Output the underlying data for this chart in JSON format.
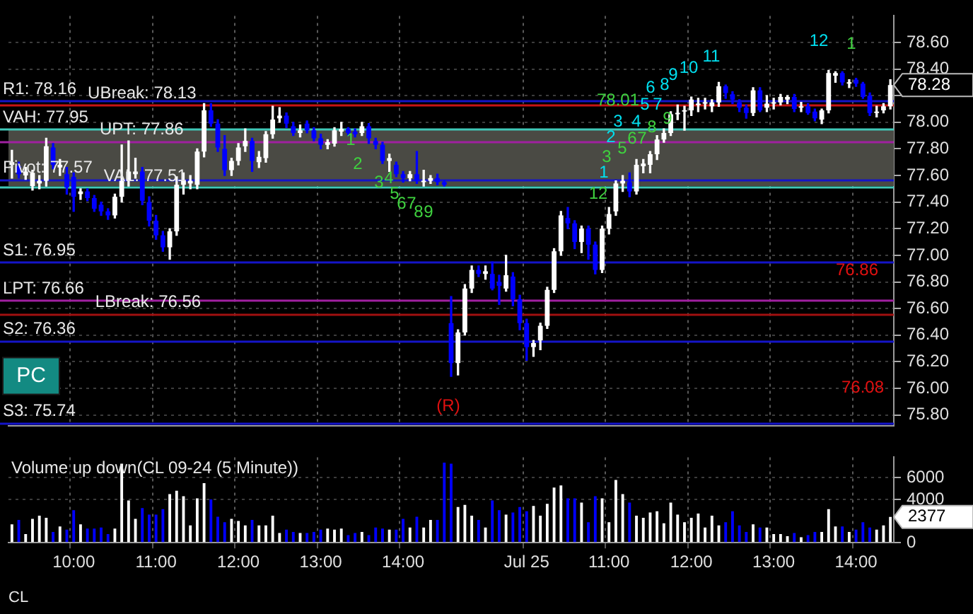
{
  "chart_data": [
    {
      "type": "candlestick",
      "categories": [
        null,
        null,
        null,
        null,
        null,
        null,
        null,
        null,
        null,
        null,
        null,
        null,
        null,
        null,
        null,
        null,
        null,
        null,
        null,
        null,
        null,
        null,
        null,
        null,
        null,
        null,
        null,
        null,
        null,
        null,
        null,
        null,
        null,
        null,
        null,
        null,
        null,
        null,
        null,
        null,
        null,
        null,
        null,
        null,
        null,
        null,
        null,
        null,
        null,
        null,
        null,
        null,
        null,
        null,
        null,
        null,
        null,
        null,
        null,
        null,
        null,
        null,
        null,
        null,
        null,
        null,
        null,
        null,
        null,
        null,
        null,
        null,
        null,
        null,
        null,
        null,
        null,
        null,
        null,
        null,
        null,
        null,
        null,
        null,
        null,
        null,
        null,
        null,
        null,
        null,
        null,
        null,
        null,
        null,
        null,
        null,
        null,
        null,
        null,
        null,
        null,
        null,
        null,
        null,
        null,
        null,
        null,
        null,
        null,
        null,
        null,
        null,
        null,
        null,
        null,
        null,
        null,
        null,
        null,
        null,
        null,
        null,
        null,
        null,
        null,
        null,
        null,
        null,
        null
      ],
      "ohlc": [
        [
          77.68,
          77.79,
          77.58,
          77.7
        ],
        [
          77.67,
          77.7,
          77.58,
          77.61
        ],
        [
          77.6,
          77.66,
          77.57,
          77.63
        ],
        [
          77.52,
          77.64,
          77.49,
          77.62
        ],
        [
          77.54,
          77.6,
          77.5,
          77.56
        ],
        [
          77.56,
          77.88,
          77.52,
          77.82
        ],
        [
          77.81,
          77.84,
          77.65,
          77.68
        ],
        [
          77.66,
          77.72,
          77.6,
          77.68
        ],
        [
          77.61,
          77.66,
          77.46,
          77.51
        ],
        [
          77.59,
          77.62,
          77.33,
          77.44
        ],
        [
          77.46,
          77.5,
          77.42,
          77.48
        ],
        [
          77.48,
          77.5,
          77.41,
          77.43
        ],
        [
          77.43,
          77.45,
          77.33,
          77.35
        ],
        [
          77.38,
          77.4,
          77.3,
          77.33
        ],
        [
          77.33,
          77.35,
          77.27,
          77.3
        ],
        [
          77.3,
          77.46,
          77.28,
          77.44
        ],
        [
          77.44,
          77.83,
          77.4,
          77.56
        ],
        [
          77.56,
          77.86,
          77.52,
          77.63
        ],
        [
          77.61,
          77.73,
          77.58,
          77.63
        ],
        [
          77.63,
          77.66,
          77.38,
          77.41
        ],
        [
          77.4,
          77.44,
          77.22,
          77.26
        ],
        [
          77.26,
          77.3,
          77.12,
          77.15
        ],
        [
          77.15,
          77.18,
          77.03,
          77.06
        ],
        [
          77.06,
          77.2,
          76.97,
          77.18
        ],
        [
          77.18,
          77.59,
          77.15,
          77.53
        ],
        [
          77.53,
          77.62,
          77.46,
          77.56
        ],
        [
          77.54,
          77.6,
          77.5,
          77.56
        ],
        [
          77.53,
          77.8,
          77.5,
          77.78
        ],
        [
          77.78,
          78.14,
          77.74,
          78.09
        ],
        [
          78.09,
          78.14,
          77.97,
          77.99
        ],
        [
          77.99,
          78.02,
          77.78,
          77.81
        ],
        [
          77.8,
          77.9,
          77.6,
          77.64
        ],
        [
          77.64,
          77.73,
          77.6,
          77.71
        ],
        [
          77.71,
          77.84,
          77.68,
          77.81
        ],
        [
          77.82,
          77.95,
          77.78,
          77.86
        ],
        [
          77.86,
          77.88,
          77.63,
          77.71
        ],
        [
          77.7,
          77.78,
          77.66,
          77.74
        ],
        [
          77.73,
          77.93,
          77.7,
          77.91
        ],
        [
          77.91,
          78.12,
          77.88,
          78.02
        ],
        [
          78.03,
          78.11,
          78.0,
          78.05
        ],
        [
          78.05,
          78.07,
          77.96,
          77.99
        ],
        [
          77.97,
          78.0,
          77.9,
          77.92
        ],
        [
          77.92,
          77.98,
          77.89,
          77.94
        ],
        [
          77.99,
          78.01,
          77.92,
          77.94
        ],
        [
          77.94,
          77.96,
          77.86,
          77.88
        ],
        [
          77.88,
          77.91,
          77.8,
          77.83
        ],
        [
          77.83,
          77.87,
          77.8,
          77.85
        ],
        [
          77.84,
          77.96,
          77.82,
          77.94
        ],
        [
          77.93,
          78.0,
          77.9,
          77.95
        ],
        [
          77.95,
          77.96,
          77.9,
          77.92
        ],
        [
          77.93,
          77.95,
          77.89,
          77.91
        ],
        [
          77.92,
          78.0,
          77.9,
          77.97
        ],
        [
          77.97,
          77.99,
          77.84,
          77.88
        ],
        [
          77.86,
          77.88,
          77.8,
          77.83
        ],
        [
          77.83,
          77.85,
          77.69,
          77.71
        ],
        [
          77.71,
          77.76,
          77.63,
          77.73
        ],
        [
          77.68,
          77.7,
          77.59,
          77.61
        ],
        [
          77.61,
          77.63,
          77.55,
          77.58
        ],
        [
          77.58,
          77.63,
          77.56,
          77.61
        ],
        [
          77.61,
          77.78,
          77.54,
          77.56
        ],
        [
          77.55,
          77.64,
          77.52,
          77.56
        ],
        [
          77.56,
          77.6,
          77.54,
          77.58
        ],
        [
          77.58,
          77.61,
          77.53,
          77.55
        ],
        [
          77.55,
          77.56,
          77.52,
          77.53
        ],
        [
          76.49,
          76.69,
          76.09,
          76.19
        ],
        [
          76.19,
          76.44,
          76.1,
          76.42
        ],
        [
          76.42,
          76.78,
          76.4,
          76.75
        ],
        [
          76.75,
          76.92,
          76.72,
          76.89
        ],
        [
          76.89,
          76.92,
          76.84,
          76.86
        ],
        [
          76.86,
          76.92,
          76.82,
          76.88
        ],
        [
          76.86,
          76.95,
          76.74,
          76.75
        ],
        [
          76.8,
          76.85,
          76.63,
          76.77
        ],
        [
          76.75,
          77.0,
          76.73,
          76.85
        ],
        [
          76.84,
          76.87,
          76.62,
          76.67
        ],
        [
          76.67,
          76.7,
          76.44,
          76.49
        ],
        [
          76.49,
          76.52,
          76.21,
          76.31
        ],
        [
          76.31,
          76.36,
          76.24,
          76.34
        ],
        [
          76.36,
          76.49,
          76.29,
          76.47
        ],
        [
          76.47,
          76.76,
          76.45,
          76.74
        ],
        [
          76.74,
          77.05,
          76.72,
          77.03
        ],
        [
          77.03,
          77.33,
          77.0,
          77.3
        ],
        [
          77.28,
          77.36,
          77.2,
          77.24
        ],
        [
          77.24,
          77.26,
          77.05,
          77.1
        ],
        [
          77.1,
          77.22,
          77.02,
          77.2
        ],
        [
          77.2,
          77.22,
          76.97,
          77.08
        ],
        [
          77.08,
          77.1,
          76.86,
          76.89
        ],
        [
          76.89,
          77.22,
          76.87,
          77.2
        ],
        [
          77.2,
          77.36,
          77.16,
          77.31
        ],
        [
          77.33,
          77.56,
          77.3,
          77.54
        ],
        [
          77.54,
          77.6,
          77.48,
          77.56
        ],
        [
          77.55,
          77.62,
          77.44,
          77.48
        ],
        [
          77.48,
          77.72,
          77.46,
          77.68
        ],
        [
          77.67,
          77.72,
          77.62,
          77.69
        ],
        [
          77.68,
          77.78,
          77.62,
          77.76
        ],
        [
          77.76,
          77.9,
          77.72,
          77.87
        ],
        [
          77.87,
          77.95,
          77.85,
          77.92
        ],
        [
          77.92,
          78.08,
          77.9,
          78.06
        ],
        [
          78.06,
          78.13,
          78.02,
          78.07
        ],
        [
          78.08,
          78.12,
          77.94,
          78.09
        ],
        [
          78.09,
          78.19,
          78.05,
          78.17
        ],
        [
          78.13,
          78.18,
          78.08,
          78.14
        ],
        [
          78.14,
          78.18,
          78.1,
          78.15
        ],
        [
          78.12,
          78.17,
          78.08,
          78.15
        ],
        [
          78.15,
          78.3,
          78.12,
          78.27
        ],
        [
          78.27,
          78.28,
          78.18,
          78.22
        ],
        [
          78.21,
          78.23,
          78.14,
          78.17
        ],
        [
          78.15,
          78.17,
          78.08,
          78.11
        ],
        [
          78.11,
          78.13,
          78.03,
          78.07
        ],
        [
          78.07,
          78.26,
          78.05,
          78.24
        ],
        [
          78.24,
          78.26,
          78.08,
          78.09
        ],
        [
          78.11,
          78.2,
          78.08,
          78.14
        ],
        [
          78.14,
          78.18,
          78.1,
          78.15
        ],
        [
          78.15,
          78.21,
          78.13,
          78.19
        ],
        [
          78.17,
          78.2,
          78.14,
          78.19
        ],
        [
          78.19,
          78.21,
          78.08,
          78.1
        ],
        [
          78.11,
          78.15,
          78.08,
          78.12
        ],
        [
          78.12,
          78.14,
          78.06,
          78.07
        ],
        [
          78.08,
          78.1,
          78.01,
          78.03
        ],
        [
          78.02,
          78.1,
          77.99,
          78.09
        ],
        [
          78.09,
          78.39,
          78.07,
          78.37
        ],
        [
          78.35,
          78.38,
          78.3,
          78.37
        ],
        [
          78.37,
          78.38,
          78.28,
          78.3
        ],
        [
          78.29,
          78.32,
          78.26,
          78.3
        ],
        [
          78.32,
          78.33,
          78.27,
          78.29
        ],
        [
          78.29,
          78.3,
          78.18,
          78.19
        ],
        [
          78.2,
          78.22,
          78.05,
          78.07
        ],
        [
          78.07,
          78.12,
          78.04,
          78.08
        ],
        [
          78.09,
          78.14,
          78.07,
          78.12
        ],
        [
          78.12,
          78.32,
          78.1,
          78.28
        ]
      ],
      "colors": [
        "#ffffff",
        "#0000ff",
        "#ffffff",
        "#ffffff",
        "#ffffff",
        "#ffffff",
        "#0000ff",
        "#ffffff",
        "#0000ff",
        "#0000ff",
        "#ffffff",
        "#0000ff",
        "#0000ff",
        "#0000ff",
        "#0000ff",
        "#ffffff",
        "#ffffff",
        "#ffffff",
        "#ffffff",
        "#0000ff",
        "#0000ff",
        "#0000ff",
        "#0000ff",
        "#ffffff",
        "#ffffff",
        "#ffffff",
        "#ffffff",
        "#ffffff",
        "#ffffff",
        "#0000ff",
        "#0000ff",
        "#0000ff",
        "#ffffff",
        "#ffffff",
        "#ffffff",
        "#0000ff",
        "#ffffff",
        "#ffffff",
        "#ffffff",
        "#ffffff",
        "#0000ff",
        "#0000ff",
        "#ffffff",
        "#0000ff",
        "#0000ff",
        "#0000ff",
        "#ffffff",
        "#ffffff",
        "#ffffff",
        "#0000ff",
        "#0000ff",
        "#ffffff",
        "#0000ff",
        "#0000ff",
        "#0000ff",
        "#ffffff",
        "#0000ff",
        "#0000ff",
        "#ffffff",
        "#0000ff",
        "#ffffff",
        "#ffffff",
        "#0000ff",
        "#0000ff",
        "#0000ff",
        "#ffffff",
        "#ffffff",
        "#ffffff",
        "#0000ff",
        "#ffffff",
        "#0000ff",
        "#0000ff",
        "#ffffff",
        "#0000ff",
        "#0000ff",
        "#0000ff",
        "#ffffff",
        "#ffffff",
        "#ffffff",
        "#ffffff",
        "#ffffff",
        "#0000ff",
        "#0000ff",
        "#ffffff",
        "#0000ff",
        "#0000ff",
        "#ffffff",
        "#ffffff",
        "#ffffff",
        "#ffffff",
        "#0000ff",
        "#ffffff",
        "#ffffff",
        "#ffffff",
        "#ffffff",
        "#ffffff",
        "#ffffff",
        "#ffffff",
        "#ffffff",
        "#ffffff",
        "#ffffff",
        "#ffffff",
        "#ffffff",
        "#ffffff",
        "#0000ff",
        "#0000ff",
        "#0000ff",
        "#0000ff",
        "#ffffff",
        "#0000ff",
        "#ffffff",
        "#ffffff",
        "#ffffff",
        "#ffffff",
        "#0000ff",
        "#ffffff",
        "#0000ff",
        "#0000ff",
        "#ffffff",
        "#ffffff",
        "#ffffff",
        "#0000ff",
        "#ffffff",
        "#0000ff",
        "#0000ff",
        "#0000ff",
        "#ffffff",
        "#ffffff",
        "#ffffff"
      ],
      "ylim": [
        75.72,
        78.8
      ],
      "yticks": [
        {
          "value": 75.8,
          "label": "75.80"
        },
        {
          "value": 76,
          "label": "76.00"
        },
        {
          "value": 76.2,
          "label": "76.20"
        },
        {
          "value": 76.4,
          "label": "76.40"
        },
        {
          "value": 76.6,
          "label": "76.60"
        },
        {
          "value": 76.8,
          "label": "76.80"
        },
        {
          "value": 77,
          "label": "77.00"
        },
        {
          "value": 77.2,
          "label": "77.20"
        },
        {
          "value": 77.4,
          "label": "77.40"
        },
        {
          "value": 77.6,
          "label": "77.60"
        },
        {
          "value": 77.8,
          "label": "77.80"
        },
        {
          "value": 78,
          "label": "78.00"
        },
        {
          "value": 78.2,
          "label": null
        },
        {
          "value": 78.4,
          "label": "78.40"
        },
        {
          "value": 78.6,
          "label": "78.60"
        }
      ],
      "grid": true,
      "tick_labels": "y",
      "bands": [
        {
          "axis": "y",
          "from": 77.52,
          "to": 77.95,
          "color": "#4a4a44"
        }
      ],
      "ref_lines": [
        {
          "axis": "y",
          "value": 78.16,
          "label": "R1: 78.16",
          "color": "#1414c8"
        },
        {
          "axis": "y",
          "value": 78.13,
          "label": "UBreak: 78.13",
          "color": "#c81414"
        },
        {
          "axis": "y",
          "value": 77.95,
          "label": "VAH: 77.95",
          "color": "#40c8b8"
        },
        {
          "axis": "y",
          "value": 77.86,
          "label": "UPT: 77.86",
          "color": "#a020a0"
        },
        {
          "axis": "y",
          "value": 77.57,
          "label": "Pivot: 77.57",
          "color": "#1414c8"
        },
        {
          "axis": "y",
          "value": 77.51,
          "label": "VAL: 77.51",
          "color": "#40c8b8"
        },
        {
          "axis": "y",
          "value": 76.95,
          "label": "S1: 76.95",
          "color": "#1414c8"
        },
        {
          "axis": "y",
          "value": 76.66,
          "label": "LPT: 76.66",
          "color": "#a020a0"
        },
        {
          "axis": "y",
          "value": 76.56,
          "label": "LBreak: 76.56",
          "color": "#a01010"
        },
        {
          "axis": "y",
          "value": 76.36,
          "label": "S2: 76.36",
          "color": "#1414c8"
        },
        {
          "axis": "y",
          "value": 75.74,
          "label": "S3: 75.74",
          "color": "#1414c8"
        }
      ],
      "annotations": [
        "12",
        "1",
        "11",
        "10",
        "9",
        "78.28",
        "8",
        "6",
        "78.01",
        "5",
        "7",
        "9",
        "3",
        "4",
        "8",
        "2",
        "6",
        "7",
        "1",
        "5",
        "3",
        "2",
        "1",
        "4",
        "3",
        "5",
        "12",
        "6",
        "7",
        "8",
        "9",
        "76.86",
        "76.08",
        "PC",
        "(R)"
      ]
    },
    {
      "type": "bar",
      "title": "Volume up down(CL 09-24 (5 Minute))",
      "categories": [
        null,
        null,
        null,
        null,
        null,
        null,
        null,
        null,
        null,
        "10:00",
        null,
        null,
        null,
        null,
        null,
        null,
        null,
        null,
        null,
        null,
        null,
        "11:00",
        null,
        null,
        null,
        null,
        null,
        null,
        null,
        null,
        null,
        null,
        null,
        "12:00",
        null,
        null,
        null,
        null,
        null,
        null,
        null,
        null,
        null,
        null,
        null,
        "13:00",
        null,
        null,
        null,
        null,
        null,
        null,
        null,
        null,
        null,
        null,
        null,
        "14:00",
        null,
        null,
        null,
        null,
        null,
        null,
        null,
        null,
        null,
        null,
        null,
        null,
        null,
        null,
        null,
        null,
        null,
        "Jul 25",
        null,
        null,
        null,
        null,
        null,
        null,
        null,
        null,
        null,
        null,
        null,
        "11:00",
        null,
        null,
        null,
        null,
        null,
        null,
        null,
        null,
        null,
        null,
        null,
        "12:00",
        null,
        null,
        null,
        null,
        null,
        null,
        null,
        null,
        null,
        null,
        null,
        "13:00",
        null,
        null,
        null,
        null,
        null,
        null,
        null,
        null,
        null,
        null,
        null,
        "14:00",
        null,
        null,
        null,
        null,
        null
      ],
      "values": [
        1700,
        2100,
        800,
        2200,
        2500,
        2300,
        1000,
        1500,
        1200,
        3000,
        1700,
        1300,
        1300,
        1400,
        800,
        1300,
        7300,
        3900,
        2200,
        3200,
        2600,
        2600,
        3100,
        4500,
        4800,
        4300,
        1600,
        4100,
        5500,
        4000,
        2400,
        1900,
        2200,
        2000,
        1600,
        2100,
        1600,
        1600,
        2500,
        900,
        1200,
        1000,
        900,
        900,
        1000,
        1200,
        1300,
        1200,
        1300,
        700,
        900,
        1000,
        700,
        1400,
        1300,
        1200,
        1200,
        2200,
        1400,
        2400,
        1400,
        2100,
        2100,
        7400,
        7300,
        3300,
        3500,
        2500,
        2100,
        1400,
        3900,
        3000,
        2600,
        2800,
        3300,
        2900,
        3400,
        2500,
        3600,
        5100,
        5300,
        4100,
        4100,
        3700,
        1900,
        4300,
        4100,
        1900,
        5800,
        4500,
        3700,
        2500,
        2300,
        2800,
        2900,
        1800,
        3700,
        2600,
        1900,
        2300,
        2700,
        1400,
        2500,
        1600,
        1900,
        2900,
        1600,
        1000,
        1700,
        1400,
        1400,
        800,
        800,
        600,
        900,
        500,
        700,
        1000,
        1000,
        3100,
        1500,
        1500,
        1000,
        1200,
        1900,
        1400,
        1200,
        1600,
        2377
      ],
      "colors": [
        "#ffffff",
        "#0000ff",
        "#ffffff",
        "#ffffff",
        "#ffffff",
        "#ffffff",
        "#0000ff",
        "#ffffff",
        "#0000ff",
        "#0000ff",
        "#ffffff",
        "#0000ff",
        "#0000ff",
        "#0000ff",
        "#0000ff",
        "#ffffff",
        "#ffffff",
        "#ffffff",
        "#ffffff",
        "#0000ff",
        "#0000ff",
        "#0000ff",
        "#0000ff",
        "#ffffff",
        "#ffffff",
        "#ffffff",
        "#ffffff",
        "#ffffff",
        "#ffffff",
        "#0000ff",
        "#0000ff",
        "#0000ff",
        "#ffffff",
        "#ffffff",
        "#ffffff",
        "#0000ff",
        "#ffffff",
        "#ffffff",
        "#ffffff",
        "#ffffff",
        "#0000ff",
        "#0000ff",
        "#ffffff",
        "#0000ff",
        "#0000ff",
        "#0000ff",
        "#ffffff",
        "#ffffff",
        "#ffffff",
        "#0000ff",
        "#0000ff",
        "#ffffff",
        "#0000ff",
        "#0000ff",
        "#0000ff",
        "#ffffff",
        "#0000ff",
        "#0000ff",
        "#ffffff",
        "#0000ff",
        "#ffffff",
        "#ffffff",
        "#0000ff",
        "#0000ff",
        "#0000ff",
        "#ffffff",
        "#ffffff",
        "#ffffff",
        "#0000ff",
        "#ffffff",
        "#0000ff",
        "#0000ff",
        "#ffffff",
        "#0000ff",
        "#0000ff",
        "#0000ff",
        "#ffffff",
        "#ffffff",
        "#ffffff",
        "#ffffff",
        "#ffffff",
        "#0000ff",
        "#0000ff",
        "#ffffff",
        "#0000ff",
        "#0000ff",
        "#ffffff",
        "#ffffff",
        "#ffffff",
        "#ffffff",
        "#0000ff",
        "#ffffff",
        "#ffffff",
        "#ffffff",
        "#ffffff",
        "#ffffff",
        "#ffffff",
        "#ffffff",
        "#ffffff",
        "#ffffff",
        "#ffffff",
        "#ffffff",
        "#ffffff",
        "#ffffff",
        "#0000ff",
        "#0000ff",
        "#0000ff",
        "#0000ff",
        "#ffffff",
        "#0000ff",
        "#ffffff",
        "#ffffff",
        "#ffffff",
        "#ffffff",
        "#0000ff",
        "#ffffff",
        "#0000ff",
        "#0000ff",
        "#ffffff",
        "#ffffff",
        "#ffffff",
        "#0000ff",
        "#ffffff",
        "#0000ff",
        "#0000ff",
        "#0000ff",
        "#ffffff",
        "#ffffff",
        "#ffffff"
      ],
      "ylim": [
        0,
        7900
      ],
      "yticks": [
        0,
        4000,
        6000
      ],
      "grid": true,
      "annotations": [
        "2377",
        "CL"
      ]
    }
  ]
}
